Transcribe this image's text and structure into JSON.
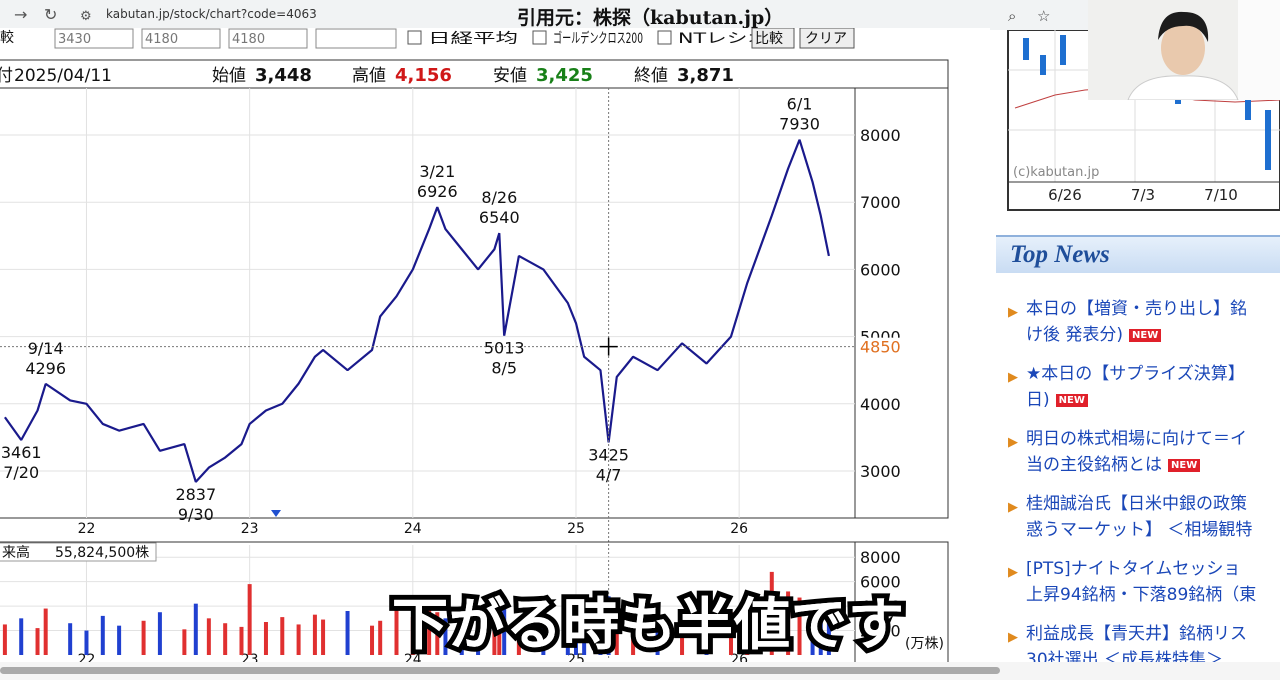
{
  "browser": {
    "url": "kabutan.jp/stock/chart?code=4063",
    "overlay": "引用元：株探（kabutan.jp）"
  },
  "form": {
    "inputs": [
      "3430",
      "4180",
      "4180"
    ],
    "checks": [
      "日経平均",
      "ゴールデンクロス200",
      "NTレシオ"
    ],
    "compare": "比較",
    "clear": "クリア",
    "left_label": "比較"
  },
  "quote": {
    "date_label": "付",
    "date": "2025/04/11",
    "open_label": "始値",
    "open": "3,448",
    "high_label": "高値",
    "high": "4,156",
    "low_label": "安値",
    "low": "3,425",
    "close_label": "終値",
    "close": "3,871"
  },
  "chart_data": {
    "type": "candlestick-line",
    "x": [
      21.5,
      21.6,
      21.7,
      21.75,
      21.9,
      22.0,
      22.1,
      22.2,
      22.35,
      22.45,
      22.6,
      22.67,
      22.75,
      22.85,
      22.95,
      23.0,
      23.1,
      23.2,
      23.3,
      23.4,
      23.45,
      23.6,
      23.75,
      23.8,
      23.9,
      24.0,
      24.1,
      24.15,
      24.2,
      24.3,
      24.4,
      24.5,
      24.53,
      24.56,
      24.65,
      24.8,
      24.95,
      25.0,
      25.05,
      25.15,
      25.2,
      25.25,
      25.35,
      25.5,
      25.65,
      25.8,
      25.95,
      26.05,
      26.2,
      26.3,
      26.37,
      26.45,
      26.5,
      26.55
    ],
    "values": [
      3800,
      3461,
      3900,
      4296,
      4050,
      4000,
      3700,
      3600,
      3700,
      3300,
      3400,
      2837,
      3050,
      3200,
      3400,
      3700,
      3900,
      4000,
      4300,
      4700,
      4800,
      4500,
      4800,
      5300,
      5600,
      6000,
      6600,
      6926,
      6600,
      6300,
      6000,
      6300,
      6540,
      5013,
      6200,
      6000,
      5500,
      5200,
      4700,
      4500,
      3425,
      4400,
      4700,
      4500,
      4900,
      4600,
      5000,
      5800,
      6800,
      7500,
      7930,
      7300,
      6800,
      6200
    ],
    "color": "#1a1a8c",
    "xlim": [
      21.47,
      26.71
    ],
    "xticks": [
      22,
      23,
      24,
      25,
      26
    ],
    "ylim": [
      2300,
      8700
    ],
    "yticks": [
      3000,
      4000,
      5000,
      6000,
      7000,
      8000
    ],
    "grid": true,
    "annotations": [
      {
        "date": "9/14",
        "value": 4296,
        "position": "above"
      },
      {
        "date": "7/20",
        "value": 3461,
        "position": "below"
      },
      {
        "date": "9/30",
        "value": 2837,
        "position": "below"
      },
      {
        "date": "3/21",
        "value": 6926,
        "position": "above"
      },
      {
        "date": "8/26",
        "value": 6540,
        "position": "above"
      },
      {
        "date": "8/5",
        "value": 5013,
        "position": "below"
      },
      {
        "date": "4/7",
        "value": 3425,
        "position": "below"
      },
      {
        "date": "6/1",
        "value": 7930,
        "position": "above"
      }
    ],
    "crosshair_value": 4850,
    "volume": {
      "label": "来高",
      "total": "55,824,500株",
      "unit": "(万株)",
      "values": [
        2500,
        3000,
        2200,
        3800,
        2600,
        2000,
        3200,
        2400,
        2800,
        3500,
        2100,
        4200,
        3000,
        2600,
        2300,
        5800,
        2700,
        3100,
        2500,
        3300,
        2900,
        3600,
        2400,
        2800,
        3900,
        3100,
        4200,
        3500,
        3000,
        2700,
        3300,
        4500,
        2600,
        3800,
        2900,
        3100,
        2500,
        2800,
        3400,
        4000,
        4800,
        3000,
        2700,
        3200,
        2600,
        2900,
        3500,
        4300,
        6800,
        5200,
        4700,
        3900,
        4400,
        3000
      ],
      "ylim": [
        0,
        9000
      ],
      "yticks": [
        2000,
        4000,
        6000,
        8000
      ],
      "up_color": "#e03030",
      "down_color": "#2040d0"
    }
  },
  "thumb": {
    "copyright": "(c)kabutan.jp",
    "xlabels": [
      "6/26",
      "7/3",
      "7/10",
      "7/"
    ]
  },
  "news": {
    "title": "Top News",
    "badge": "NEW",
    "items": [
      {
        "lines": [
          "本日の【増資・売り出し】銘",
          "け後 発表分)"
        ],
        "is_new": true
      },
      {
        "lines": [
          "★本日の【サプライズ決算】",
          "日)"
        ],
        "is_new": true
      },
      {
        "lines": [
          "明日の株式相場に向けて＝イ",
          "当の主役銘柄とは"
        ],
        "is_new": true
      },
      {
        "lines": [
          "桂畑誠治氏【日米中銀の政策",
          "惑うマーケット】 ＜相場観特"
        ],
        "is_new": false
      },
      {
        "lines": [
          "[PTS]ナイトタイムセッショ",
          "上昇94銘柄・下落89銘柄（東"
        ],
        "is_new": false
      },
      {
        "lines": [
          "利益成長【青天井】銘柄リス",
          "30社選出 ＜成長株特集＞"
        ],
        "is_new": false
      }
    ]
  },
  "caption": "下がる時も半値です"
}
